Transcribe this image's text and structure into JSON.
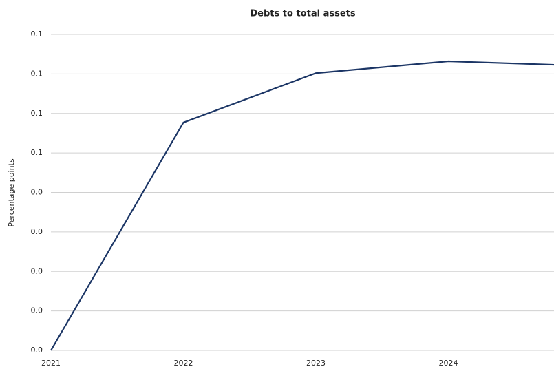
{
  "chart_data": {
    "type": "line",
    "title": "Debts to total assets",
    "y_label": "Percentage points",
    "categories": [
      "2021",
      "2022",
      "2023",
      "2024",
      null
    ],
    "series": [
      {
        "name": "Debts to total assets",
        "color": "#1b3565",
        "values": [
          0,
          0.0577,
          0.0702,
          0.0732,
          0.0721
        ]
      }
    ],
    "ylim": [
      0,
      0.08
    ],
    "yticks": [
      {
        "value": 0,
        "label": "0.0"
      },
      {
        "value": 0.01,
        "label": "0.0"
      },
      {
        "value": 0.02,
        "label": "0.0"
      },
      {
        "value": 0.03,
        "label": "0.0"
      },
      {
        "value": 0.04,
        "label": "0.0"
      },
      {
        "value": 0.05,
        "label": "0.1"
      },
      {
        "value": 0.06,
        "label": "0.1"
      },
      {
        "value": 0.07,
        "label": "0.1"
      },
      {
        "value": 0.08,
        "label": "0.1"
      }
    ],
    "grid": true
  }
}
